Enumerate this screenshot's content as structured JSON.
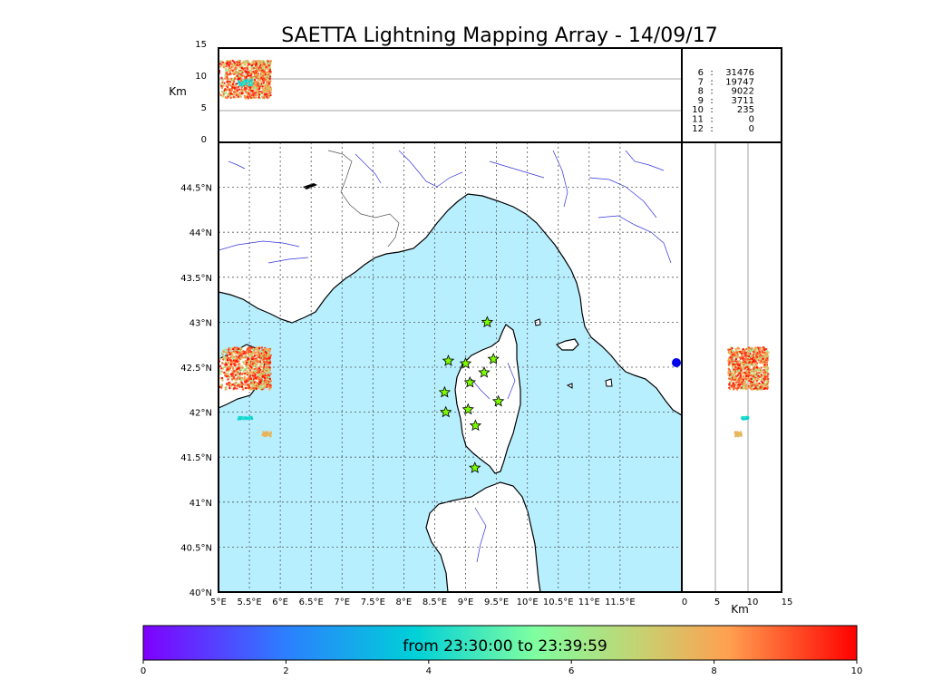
{
  "title": "SAETTA Lightning Mapping Array - 14/09/17",
  "map": {
    "lon_range": [
      5,
      12.5
    ],
    "lat_range": [
      40,
      45
    ],
    "lon_ticks": [
      "5°E",
      "5.5°E",
      "6°E",
      "6.5°E",
      "7°E",
      "7.5°E",
      "8°E",
      "8.5°E",
      "9°E",
      "9.5°E",
      "10°E",
      "10.5°E",
      "11°E",
      "11.5°E"
    ],
    "lat_ticks": [
      "40°N",
      "40.5°N",
      "41°N",
      "41.5°N",
      "42°N",
      "42.5°N",
      "43°N",
      "43.5°N",
      "44°N",
      "44.5°N"
    ],
    "sea_color": "#b7efff",
    "land_color": "#ffffff",
    "river_color": "#3333dd",
    "stations": [
      {
        "lon": 9.35,
        "lat": 43.0
      },
      {
        "lon": 8.72,
        "lat": 42.57
      },
      {
        "lon": 9.0,
        "lat": 42.54
      },
      {
        "lon": 9.45,
        "lat": 42.59
      },
      {
        "lon": 9.3,
        "lat": 42.44
      },
      {
        "lon": 9.07,
        "lat": 42.33
      },
      {
        "lon": 8.66,
        "lat": 42.22
      },
      {
        "lon": 9.53,
        "lat": 42.12
      },
      {
        "lon": 9.04,
        "lat": 42.03
      },
      {
        "lon": 8.68,
        "lat": 42.0
      },
      {
        "lon": 9.16,
        "lat": 41.85
      },
      {
        "lon": 9.15,
        "lat": 41.38
      }
    ]
  },
  "top_panel": {
    "ylabel": "Km",
    "y_ticks": [
      "0",
      "5",
      "10",
      "15"
    ]
  },
  "side_panel": {
    "xlabel": "Km",
    "x_ticks": [
      "0",
      "5",
      "10",
      "15"
    ]
  },
  "stats": [
    {
      "label": "6",
      "count": "31476",
      "color": "#000000"
    },
    {
      "label": "7",
      "count": "19747",
      "color": "#ff0000"
    },
    {
      "label": "8",
      "count": "9022",
      "color": "#000000"
    },
    {
      "label": "9",
      "count": "3711",
      "color": "#000000"
    },
    {
      "label": "10",
      "count": "235",
      "color": "#000000"
    },
    {
      "label": "11",
      "count": "0",
      "color": "#000000"
    },
    {
      "label": "12",
      "count": "0",
      "color": "#000000"
    }
  ],
  "colorbar": {
    "text": "from 23:30:00 to 23:39:59",
    "ticks": [
      "0",
      "2",
      "4",
      "6",
      "8",
      "10"
    ],
    "colors": [
      "#7f00ff",
      "#1e90ff",
      "#00d0d8",
      "#80ffa0",
      "#c0d870",
      "#ffa050",
      "#ff0000"
    ]
  },
  "chart_data": {
    "type": "scatter",
    "title": "SAETTA Lightning Mapping Array - 14/09/17",
    "xlabel": "",
    "ylabel": "",
    "xlim": [
      5,
      12.5
    ],
    "ylim": [
      40,
      45
    ],
    "top_panel_ylim_km": [
      0,
      15
    ],
    "side_panel_xlim_km": [
      0,
      15
    ],
    "time_range_minutes": [
      0,
      10
    ],
    "grid": true,
    "clusters": [
      {
        "lon_range": [
          5.0,
          5.85
        ],
        "lat_range": [
          42.25,
          42.72
        ],
        "altitude_km": [
          7,
          13
        ],
        "time_min": [
          5,
          10
        ]
      },
      {
        "lon_range": [
          5.7,
          5.85
        ],
        "lat_range": [
          41.73,
          41.78
        ],
        "altitude_km": [
          8,
          9
        ],
        "time_min": [
          7,
          8
        ]
      },
      {
        "lon_range": [
          5.3,
          5.55
        ],
        "lat_range": [
          41.92,
          41.95
        ],
        "altitude_km": [
          9,
          10
        ],
        "time_min": [
          3,
          4
        ]
      }
    ]
  }
}
